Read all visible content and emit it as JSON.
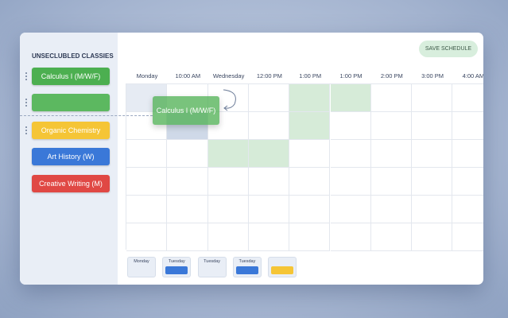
{
  "header": {
    "button": "SAVE SCHEDULE"
  },
  "sidebar": {
    "title": "UNSECLUBLED CLASSIES",
    "classes": [
      "Calculus I (M/W/F)",
      "Organic Chemistry",
      "Art History (W)",
      "Creative Writing (M)"
    ]
  },
  "calendar": {
    "columns": [
      "Monday",
      "10:00 AM",
      "Wednesday",
      "12:00 PM",
      "1:00 PM",
      "1:00 PM",
      "2:00 PM",
      "3:00 PM",
      "4:00 AM"
    ],
    "dragged": "Calculus I (M/W/F)"
  },
  "mini_days": [
    "Monday",
    "Tuesday",
    "Tuesday",
    "Tuesday"
  ]
}
